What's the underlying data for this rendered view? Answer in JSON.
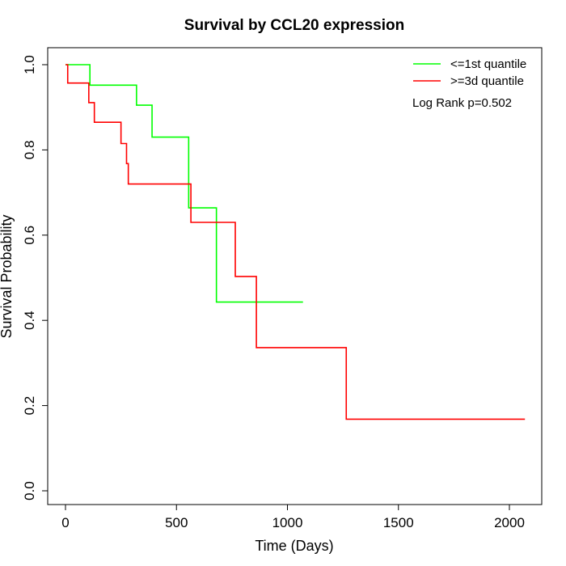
{
  "chart_data": {
    "type": "line",
    "title": "Survival by CCL20 expression",
    "xlabel": "Time (Days)",
    "ylabel": "Survival Probability",
    "xlim": [
      0,
      2070
    ],
    "ylim": [
      0,
      1.0
    ],
    "xticks": [
      0,
      500,
      1000,
      1500,
      2000
    ],
    "yticks": [
      0.0,
      0.2,
      0.4,
      0.6,
      0.8,
      1.0
    ],
    "xtick_labels": [
      "0",
      "500",
      "1000",
      "1500",
      "2000"
    ],
    "ytick_labels": [
      "0.0",
      "0.2",
      "0.4",
      "0.6",
      "0.8",
      "1.0"
    ],
    "legend_position": "top-right",
    "annotation": "Log Rank p=0.502",
    "series": [
      {
        "name": "<=1st quantile",
        "color": "#00ff00",
        "x": [
          0,
          110,
          320,
          390,
          555,
          680,
          1070
        ],
        "y": [
          1.0,
          0.952,
          0.905,
          0.83,
          0.664,
          0.443,
          0.443
        ]
      },
      {
        "name": ">=3d quantile",
        "color": "#ff0000",
        "x": [
          0,
          10,
          105,
          130,
          250,
          275,
          283,
          565,
          765,
          860,
          1265,
          2070
        ],
        "y": [
          1.0,
          0.957,
          0.911,
          0.865,
          0.815,
          0.768,
          0.72,
          0.63,
          0.503,
          0.336,
          0.168,
          0.168
        ]
      }
    ]
  }
}
